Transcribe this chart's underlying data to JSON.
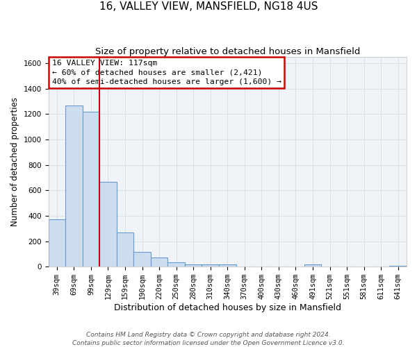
{
  "title": "16, VALLEY VIEW, MANSFIELD, NG18 4US",
  "subtitle": "Size of property relative to detached houses in Mansfield",
  "xlabel": "Distribution of detached houses by size in Mansfield",
  "ylabel": "Number of detached properties",
  "footer_line1": "Contains HM Land Registry data © Crown copyright and database right 2024.",
  "footer_line2": "Contains public sector information licensed under the Open Government Licence v3.0.",
  "bar_labels": [
    "39sqm",
    "69sqm",
    "99sqm",
    "129sqm",
    "159sqm",
    "190sqm",
    "220sqm",
    "250sqm",
    "280sqm",
    "310sqm",
    "340sqm",
    "370sqm",
    "400sqm",
    "430sqm",
    "460sqm",
    "491sqm",
    "521sqm",
    "551sqm",
    "581sqm",
    "611sqm",
    "641sqm"
  ],
  "bar_values": [
    370,
    1265,
    1215,
    665,
    270,
    115,
    70,
    35,
    20,
    20,
    15,
    0,
    0,
    0,
    0,
    15,
    0,
    0,
    0,
    0,
    5
  ],
  "bar_color": "#ccddf0",
  "bar_edge_color": "#6699cc",
  "ylim": [
    0,
    1650
  ],
  "yticks": [
    0,
    200,
    400,
    600,
    800,
    1000,
    1200,
    1400,
    1600
  ],
  "vline_color": "#cc0000",
  "vline_x": 2.5,
  "annotation_line1": "16 VALLEY VIEW: 117sqm",
  "annotation_line2": "← 60% of detached houses are smaller (2,421)",
  "annotation_line3": "40% of semi-detached houses are larger (1,600) →",
  "bg_color": "#ffffff",
  "plot_bg_color": "#f0f4f8",
  "grid_color": "#d0d8e0",
  "title_fontsize": 11,
  "subtitle_fontsize": 9.5,
  "xlabel_fontsize": 9,
  "ylabel_fontsize": 8.5,
  "tick_fontsize": 7.5,
  "footer_fontsize": 6.5
}
